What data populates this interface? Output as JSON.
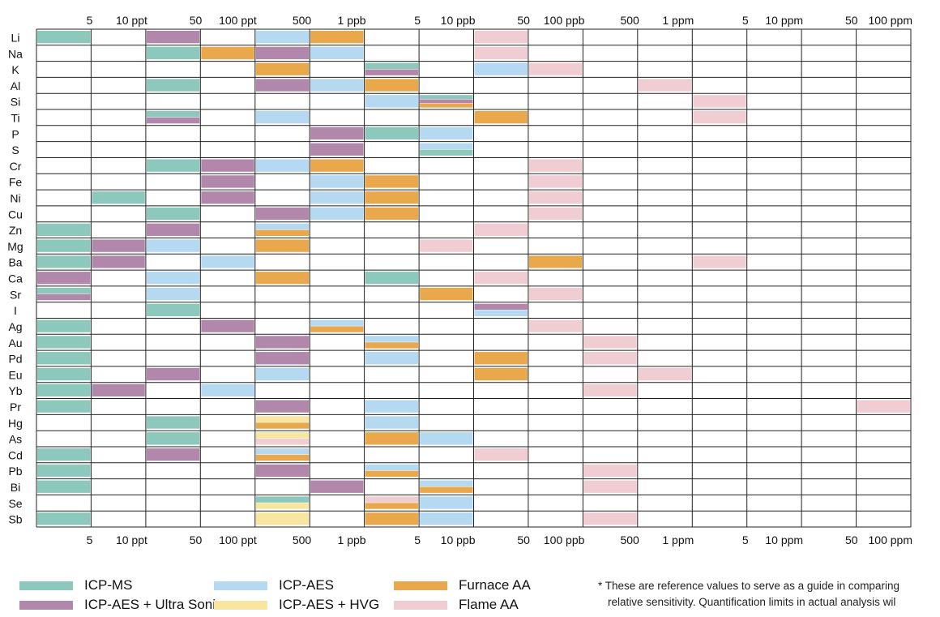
{
  "chart_data": {
    "type": "range-bar",
    "scale_labels_top": [
      "5",
      "10 ppt",
      "50",
      "100 ppt",
      "500",
      "1 ppb",
      "5",
      "10 ppb",
      "50",
      "100 ppb",
      "500",
      "1 ppm",
      "5",
      "10 ppm",
      "50",
      "100 ppm"
    ],
    "scale_labels_bottom": [
      "5",
      "10 ppt",
      "50",
      "100 ppt",
      "500",
      "1 ppb",
      "5",
      "10 ppb",
      "50",
      "100 ppb",
      "500",
      "1 ppm",
      "5",
      "10 ppm",
      "50",
      "100 ppm"
    ],
    "column_edges": [
      "5",
      "10 ppt",
      "50",
      "100 ppt",
      "500",
      "1 ppb",
      "5",
      "10 ppb",
      "50",
      "100 ppb",
      "500",
      "1 ppm",
      "5",
      "10 ppm",
      "50",
      "100 ppm"
    ],
    "methods": [
      {
        "key": "ms",
        "name": "ICP-MS",
        "color": "#8cc8bc"
      },
      {
        "key": "aes",
        "name": "ICP-AES",
        "color": "#b5d9f0"
      },
      {
        "key": "faa",
        "name": "Furnace AA",
        "color": "#eaa84c"
      },
      {
        "key": "us",
        "name": "ICP-AES + Ultra Sonic",
        "color": "#b188ab"
      },
      {
        "key": "hvg",
        "name": "ICP-AES + HVG",
        "color": "#f6e6a0"
      },
      {
        "key": "flame",
        "name": "Flame AA",
        "color": "#f0cdd2"
      }
    ],
    "elements": [
      {
        "element": "Li",
        "limits": [
          [
            "ms",
            0
          ],
          [
            "us",
            2
          ],
          [
            "aes",
            4
          ],
          [
            "faa",
            5
          ],
          [
            "flame",
            8
          ]
        ]
      },
      {
        "element": "Na",
        "limits": [
          [
            "ms",
            2
          ],
          [
            "faa",
            3
          ],
          [
            "us",
            4
          ],
          [
            "aes",
            5
          ],
          [
            "flame",
            8
          ]
        ]
      },
      {
        "element": "K",
        "limits": [
          [
            "ms",
            6
          ],
          [
            "faa",
            4
          ],
          [
            "us",
            6
          ],
          [
            "aes",
            8
          ],
          [
            "flame",
            9
          ]
        ]
      },
      {
        "element": "Al",
        "limits": [
          [
            "ms",
            2
          ],
          [
            "us",
            4
          ],
          [
            "aes",
            5
          ],
          [
            "faa",
            6
          ],
          [
            "flame",
            11
          ]
        ]
      },
      {
        "element": "Si",
        "limits": [
          [
            "aes",
            6
          ],
          [
            "ms",
            7
          ],
          [
            "us",
            7
          ],
          [
            "faa",
            7
          ],
          [
            "flame",
            12
          ]
        ]
      },
      {
        "element": "Ti",
        "limits": [
          [
            "ms",
            2
          ],
          [
            "us",
            2
          ],
          [
            "aes",
            4
          ],
          [
            "faa",
            8
          ],
          [
            "flame",
            12
          ]
        ]
      },
      {
        "element": "P",
        "limits": [
          [
            "us",
            5
          ],
          [
            "ms",
            6
          ],
          [
            "aes",
            7
          ]
        ]
      },
      {
        "element": "S",
        "limits": [
          [
            "us",
            5
          ],
          [
            "aes",
            7
          ],
          [
            "ms",
            7
          ]
        ]
      },
      {
        "element": "Cr",
        "limits": [
          [
            "ms",
            2
          ],
          [
            "us",
            3
          ],
          [
            "aes",
            4
          ],
          [
            "faa",
            5
          ],
          [
            "flame",
            9
          ]
        ]
      },
      {
        "element": "Fe",
        "limits": [
          [
            "us",
            3
          ],
          [
            "aes",
            5
          ],
          [
            "faa",
            6
          ],
          [
            "flame",
            9
          ]
        ]
      },
      {
        "element": "Ni",
        "limits": [
          [
            "ms",
            1
          ],
          [
            "us",
            3
          ],
          [
            "aes",
            5
          ],
          [
            "faa",
            6
          ],
          [
            "flame",
            9
          ]
        ]
      },
      {
        "element": "Cu",
        "limits": [
          [
            "ms",
            2
          ],
          [
            "us",
            4
          ],
          [
            "aes",
            5
          ],
          [
            "faa",
            6
          ],
          [
            "flame",
            9
          ]
        ]
      },
      {
        "element": "Zn",
        "limits": [
          [
            "ms",
            0
          ],
          [
            "us",
            2
          ],
          [
            "aes",
            4
          ],
          [
            "faa",
            4
          ],
          [
            "flame",
            8
          ]
        ]
      },
      {
        "element": "Mg",
        "limits": [
          [
            "ms",
            0
          ],
          [
            "us",
            1
          ],
          [
            "aes",
            2
          ],
          [
            "faa",
            4
          ],
          [
            "flame",
            7
          ]
        ]
      },
      {
        "element": "Ba",
        "limits": [
          [
            "ms",
            0
          ],
          [
            "us",
            1
          ],
          [
            "aes",
            3
          ],
          [
            "faa",
            9
          ],
          [
            "flame",
            12
          ]
        ]
      },
      {
        "element": "Ca",
        "limits": [
          [
            "us",
            0
          ],
          [
            "aes",
            2
          ],
          [
            "faa",
            4
          ],
          [
            "ms",
            6
          ],
          [
            "flame",
            8
          ]
        ]
      },
      {
        "element": "Sr",
        "limits": [
          [
            "ms",
            0
          ],
          [
            "us",
            0
          ],
          [
            "aes",
            2
          ],
          [
            "faa",
            7
          ],
          [
            "flame",
            9
          ]
        ]
      },
      {
        "element": "I",
        "limits": [
          [
            "ms",
            2
          ],
          [
            "us",
            8
          ],
          [
            "aes",
            8
          ]
        ]
      },
      {
        "element": "Ag",
        "limits": [
          [
            "ms",
            0
          ],
          [
            "us",
            3
          ],
          [
            "aes",
            5
          ],
          [
            "faa",
            5
          ],
          [
            "flame",
            9
          ]
        ]
      },
      {
        "element": "Au",
        "limits": [
          [
            "ms",
            0
          ],
          [
            "us",
            4
          ],
          [
            "aes",
            6
          ],
          [
            "faa",
            6
          ],
          [
            "flame",
            10
          ]
        ]
      },
      {
        "element": "Pd",
        "limits": [
          [
            "ms",
            0
          ],
          [
            "us",
            4
          ],
          [
            "aes",
            6
          ],
          [
            "faa",
            8
          ],
          [
            "flame",
            10
          ]
        ]
      },
      {
        "element": "Eu",
        "limits": [
          [
            "ms",
            0
          ],
          [
            "us",
            2
          ],
          [
            "aes",
            4
          ],
          [
            "faa",
            8
          ],
          [
            "flame",
            11
          ]
        ]
      },
      {
        "element": "Yb",
        "limits": [
          [
            "ms",
            0
          ],
          [
            "us",
            1
          ],
          [
            "aes",
            3
          ],
          [
            "flame",
            10
          ]
        ]
      },
      {
        "element": "Pr",
        "limits": [
          [
            "ms",
            0
          ],
          [
            "us",
            4
          ],
          [
            "aes",
            6
          ],
          [
            "flame",
            15
          ]
        ]
      },
      {
        "element": "Hg",
        "limits": [
          [
            "ms",
            2
          ],
          [
            "hvg",
            4
          ],
          [
            "faa",
            4
          ],
          [
            "aes",
            6
          ]
        ]
      },
      {
        "element": "As",
        "limits": [
          [
            "ms",
            2
          ],
          [
            "hvg",
            4
          ],
          [
            "flame",
            4
          ],
          [
            "faa",
            6
          ],
          [
            "aes",
            7
          ]
        ]
      },
      {
        "element": "Cd",
        "limits": [
          [
            "ms",
            0
          ],
          [
            "us",
            2
          ],
          [
            "aes",
            4
          ],
          [
            "faa",
            4
          ],
          [
            "flame",
            8
          ]
        ]
      },
      {
        "element": "Pb",
        "limits": [
          [
            "ms",
            0
          ],
          [
            "us",
            4
          ],
          [
            "aes",
            6
          ],
          [
            "faa",
            6
          ],
          [
            "flame",
            10
          ]
        ]
      },
      {
        "element": "Bi",
        "limits": [
          [
            "ms",
            0
          ],
          [
            "us",
            5
          ],
          [
            "aes",
            7
          ],
          [
            "faa",
            7
          ],
          [
            "flame",
            10
          ]
        ]
      },
      {
        "element": "Se",
        "limits": [
          [
            "ms",
            4
          ],
          [
            "hvg",
            4
          ],
          [
            "flame",
            6
          ],
          [
            "faa",
            6
          ],
          [
            "aes",
            7
          ]
        ]
      },
      {
        "element": "Sb",
        "limits": [
          [
            "ms",
            0
          ],
          [
            "hvg",
            4
          ],
          [
            "faa",
            6
          ],
          [
            "aes",
            7
          ],
          [
            "flame",
            10
          ]
        ]
      }
    ]
  },
  "legend": [
    {
      "key": "ms",
      "label": "ICP-MS"
    },
    {
      "key": "aes",
      "label": "ICP-AES"
    },
    {
      "key": "faa",
      "label": "Furnace AA"
    },
    {
      "key": "us",
      "label": "ICP-AES + Ultra Sonic"
    },
    {
      "key": "hvg",
      "label": "ICP-AES + HVG"
    },
    {
      "key": "flame",
      "label": "Flame AA"
    }
  ],
  "note": {
    "line1": "* These are reference values to serve as a guide in comparing",
    "line2": "relative sensitivity. Quantification limits in actual analysis wil"
  }
}
